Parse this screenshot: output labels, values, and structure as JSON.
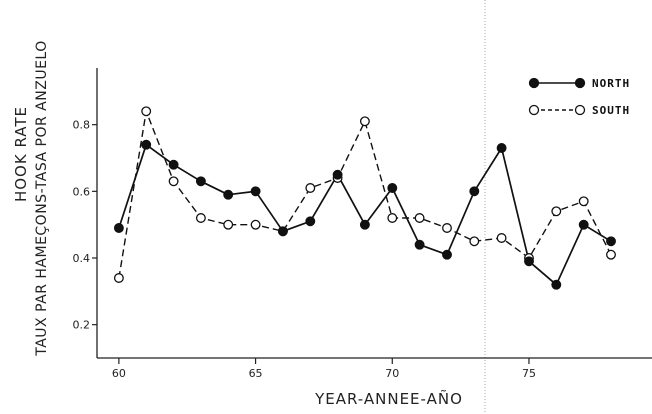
{
  "chart_data": {
    "type": "line",
    "title": "",
    "xlabel": "YEAR-ANNEE-AÑO",
    "ylabel_line1": "HOOK RATE",
    "ylabel_line2": "TAUX PAR HAMEÇONS-TASA POR ANZUELO",
    "x": [
      60,
      61,
      62,
      63,
      64,
      65,
      66,
      67,
      68,
      69,
      70,
      71,
      72,
      73,
      74,
      75,
      76,
      77,
      78
    ],
    "xlim": [
      59.2,
      79.5
    ],
    "ylim": [
      0.1,
      0.97
    ],
    "x_ticks": [
      60,
      65,
      70,
      75
    ],
    "x_tick_labels": [
      "60",
      "65",
      "70",
      "75"
    ],
    "y_ticks": [
      0.2,
      0.4,
      0.6,
      0.8
    ],
    "y_tick_labels": [
      "0.2",
      "0.4",
      "0.6",
      "0.8"
    ],
    "grid": false,
    "legend_position": "top-right",
    "series": [
      {
        "name": "NORTH",
        "style": "solid",
        "marker": "filled-circle",
        "values": [
          0.49,
          0.74,
          0.68,
          0.63,
          0.59,
          0.6,
          0.48,
          0.51,
          0.65,
          0.5,
          0.61,
          0.44,
          0.41,
          0.6,
          0.73,
          0.39,
          0.32,
          0.5,
          0.45
        ]
      },
      {
        "name": "SOUTH",
        "style": "dashed",
        "marker": "open-circle",
        "values": [
          0.34,
          0.84,
          0.63,
          0.52,
          0.5,
          0.5,
          0.48,
          0.61,
          0.64,
          0.81,
          0.52,
          0.52,
          0.49,
          0.45,
          0.46,
          0.4,
          0.54,
          0.57,
          0.41
        ]
      }
    ]
  }
}
